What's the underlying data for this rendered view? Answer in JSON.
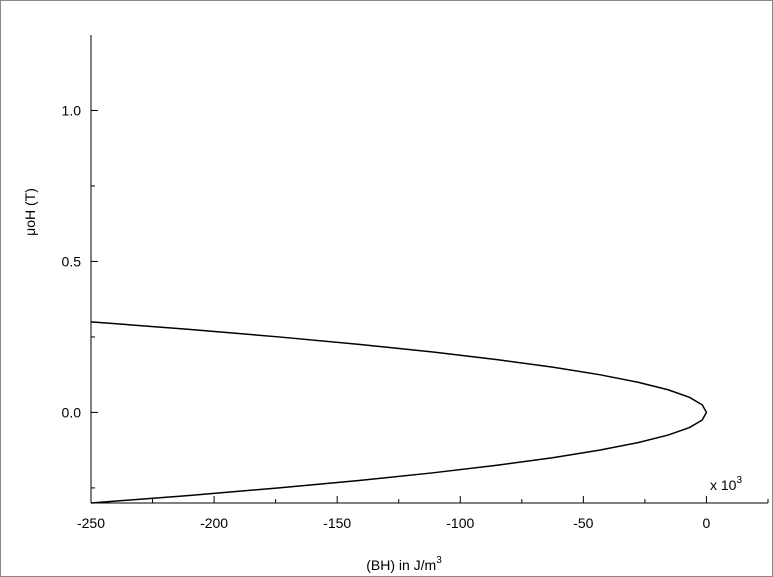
{
  "chart_data": {
    "type": "line",
    "x": [
      -250,
      -210.1,
      -173.6,
      -140.6,
      -111.1,
      -85.1,
      -62.5,
      -43.4,
      -27.8,
      -15.6,
      -6.9,
      -1.7,
      0,
      -1.7,
      -6.9,
      -15.6,
      -27.8,
      -43.4,
      -62.5,
      -85.1,
      -111.1,
      -140.6,
      -173.6,
      -210.1,
      -250
    ],
    "values": [
      -0.3,
      -0.275,
      -0.25,
      -0.225,
      -0.2,
      -0.175,
      -0.15,
      -0.125,
      -0.1,
      -0.075,
      -0.05,
      -0.025,
      0,
      0.025,
      0.05,
      0.075,
      0.1,
      0.125,
      0.15,
      0.175,
      0.2,
      0.225,
      0.25,
      0.275,
      0.3
    ],
    "color": "#000000",
    "xlim": [
      -250,
      25
    ],
    "xticks": [
      -250,
      -200,
      -150,
      -100,
      -50,
      0
    ],
    "xminor_ticks": [
      -225,
      -175,
      -125,
      -75,
      -25,
      25
    ],
    "ylim": [
      -0.3,
      1.25
    ],
    "yticks": [
      {
        "value": 0,
        "label": "0.0"
      },
      {
        "value": 0.5,
        "label": "0.5"
      },
      {
        "value": 1,
        "label": "1.0"
      }
    ],
    "yminor_ticks": [
      -0.25,
      0.25,
      0.75
    ],
    "xlabel": "(BH) in J/m",
    "xlabel_superscript": "3",
    "ylabel": "μoH (T)",
    "x_multiplier": {
      "base": "x 10",
      "exponent": "3"
    }
  }
}
